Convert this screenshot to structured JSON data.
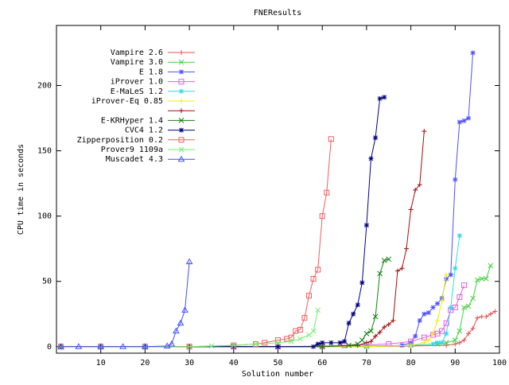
{
  "chart_data": {
    "type": "line",
    "title": "FNEResults",
    "x_label": "Solution number",
    "y_label": "CPU time in seconds",
    "xlim": [
      0,
      100
    ],
    "ylim": [
      -5,
      246
    ],
    "xticks": [
      10,
      20,
      30,
      40,
      50,
      60,
      70,
      80,
      90,
      100
    ],
    "yticks": [
      0,
      50,
      100,
      150,
      200
    ],
    "legend": "top-left",
    "series": [
      {
        "name": "Vampire 2.6",
        "color": "#e05050",
        "marker": "plus",
        "x": [
          1,
          10,
          20,
          30,
          40,
          50,
          60,
          70,
          80,
          88,
          90,
          91,
          92,
          93,
          94,
          95,
          96,
          97,
          98,
          99
        ],
        "values": [
          0,
          0,
          0,
          0,
          0,
          0,
          0,
          0,
          0.5,
          1,
          2,
          3,
          5,
          10,
          14,
          22,
          23,
          23,
          25,
          27
        ]
      },
      {
        "name": "Vampire 3.0",
        "color": "#40d040",
        "marker": "cross",
        "x": [
          1,
          10,
          20,
          30,
          40,
          50,
          60,
          70,
          80,
          86,
          88,
          90,
          91,
          92,
          93,
          94,
          95,
          96,
          97,
          98
        ],
        "values": [
          0,
          0,
          0,
          0,
          0,
          0,
          0,
          0.5,
          1,
          2,
          3,
          5,
          12,
          30,
          31,
          37,
          51,
          52,
          52,
          62
        ]
      },
      {
        "name": "E 1.8",
        "color": "#5050ff",
        "marker": "star",
        "x": [
          1,
          10,
          20,
          30,
          40,
          50,
          60,
          70,
          78,
          80,
          81,
          82,
          83,
          84,
          85,
          86,
          87,
          88,
          89,
          90,
          91,
          92,
          93,
          94
        ],
        "values": [
          0,
          0,
          0,
          0,
          0,
          0,
          0,
          0,
          1,
          3,
          8,
          20,
          25,
          26,
          30,
          33,
          37,
          52,
          55,
          128,
          172,
          173,
          175,
          225
        ]
      },
      {
        "name": "iProver 1.0",
        "color": "#e060e0",
        "marker": "box",
        "x": [
          1,
          10,
          20,
          30,
          40,
          50,
          60,
          65,
          70,
          75,
          80,
          83,
          85,
          86,
          87,
          88,
          89,
          90,
          91,
          92
        ],
        "values": [
          0,
          0,
          0,
          0,
          0,
          0,
          0.5,
          1,
          1.5,
          2,
          4,
          7,
          9,
          10,
          12,
          18,
          28,
          30,
          38,
          47
        ]
      },
      {
        "name": "E-MaLeS 1.2",
        "color": "#30d8e8",
        "marker": "star",
        "x": [
          1,
          10,
          20,
          30,
          40,
          50,
          60,
          70,
          80,
          85,
          86,
          87,
          88,
          89,
          90,
          91
        ],
        "values": [
          0,
          0,
          0,
          0,
          0,
          0,
          0,
          0,
          1,
          2,
          3,
          3,
          10,
          30,
          60,
          85
        ]
      },
      {
        "name": "iProver-Eq 0.85",
        "color": "#f0f000",
        "marker": "plus",
        "x": [
          1,
          10,
          20,
          30,
          40,
          50,
          60,
          70,
          80,
          83,
          84,
          85,
          86,
          87,
          88
        ],
        "values": [
          0,
          0,
          0,
          0,
          0,
          0,
          0,
          0,
          1,
          3,
          5,
          10,
          20,
          35,
          55
        ]
      },
      {
        "name": null,
        "color": "#a01010",
        "marker": "plus",
        "x": [
          1,
          10,
          20,
          30,
          40,
          50,
          60,
          68,
          70,
          71,
          72,
          73,
          74,
          75,
          76,
          77,
          78,
          79,
          80,
          81,
          82,
          83
        ],
        "values": [
          0,
          0,
          0,
          0,
          0,
          0,
          0,
          1,
          3,
          4,
          8,
          11,
          15,
          17,
          20,
          58,
          60,
          75,
          105,
          120,
          124,
          165
        ]
      },
      {
        "name": "E-KRHyper 1.4",
        "color": "#108010",
        "marker": "cross",
        "x": [
          1,
          10,
          20,
          30,
          40,
          50,
          60,
          66,
          68,
          69,
          70,
          71,
          72,
          73,
          74,
          75
        ],
        "values": [
          0,
          0,
          0,
          0,
          0,
          0,
          0,
          1,
          2,
          5,
          10,
          12,
          23,
          56,
          66,
          67
        ]
      },
      {
        "name": "CVC4 1.2",
        "color": "#000080",
        "marker": "star",
        "x": [
          1,
          10,
          20,
          30,
          40,
          50,
          58,
          59,
          60,
          62,
          64,
          65,
          66,
          67,
          68,
          69,
          70,
          71,
          72,
          73,
          74
        ],
        "values": [
          0,
          0,
          0,
          0,
          0,
          0,
          0,
          2,
          3,
          3,
          3,
          4,
          18,
          25,
          32,
          49,
          93,
          144,
          160,
          190,
          191
        ]
      },
      {
        "name": "Zipperposition 0.2",
        "color": "#f06060",
        "marker": "box",
        "x": [
          1,
          10,
          20,
          30,
          40,
          45,
          47,
          50,
          52,
          53,
          54,
          55,
          56,
          57,
          58,
          59,
          60,
          61,
          62
        ],
        "values": [
          0,
          0,
          0,
          0,
          1,
          2,
          3,
          5,
          6,
          7,
          12,
          13,
          22,
          39,
          52,
          59,
          100,
          118,
          159
        ]
      },
      {
        "name": "Prover9 1109a",
        "color": "#70f070",
        "marker": "cross",
        "x": [
          1,
          10,
          20,
          30,
          35,
          40,
          45,
          50,
          53,
          55,
          57,
          58,
          59
        ],
        "values": [
          0,
          0,
          0,
          0,
          0.5,
          1,
          2,
          3,
          4,
          6,
          9,
          12,
          28
        ]
      },
      {
        "name": "Muscadet 4.3",
        "color": "#4050ff",
        "marker": "triangle",
        "x": [
          1,
          5,
          10,
          15,
          20,
          25,
          26,
          27,
          28,
          29,
          30
        ],
        "values": [
          0,
          0,
          0,
          0,
          0,
          0.5,
          2,
          12,
          18,
          28,
          65
        ]
      }
    ]
  }
}
